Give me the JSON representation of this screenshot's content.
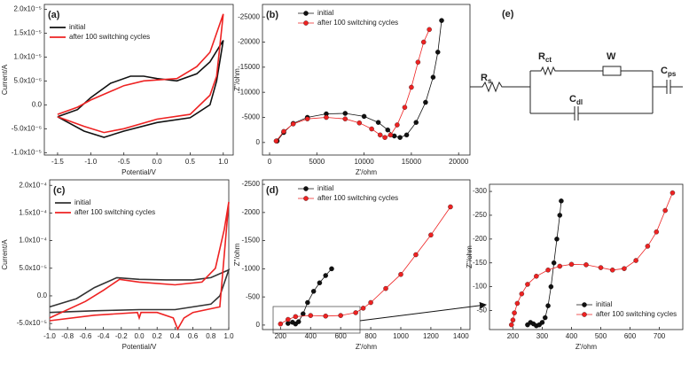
{
  "chart_data": [
    {
      "type": "line",
      "label": "(a)",
      "xlabel": "Potential/V",
      "ylabel": "Current/A",
      "legend": "upper left",
      "markers": false,
      "xlim": [
        -1.7,
        1.15
      ],
      "xticks": [
        {
          "value": -1.5,
          "label": "-1.5"
        },
        {
          "value": -1.0,
          "label": "-1.0"
        },
        {
          "value": -0.5,
          "label": "-0.5"
        },
        {
          "value": 0.0,
          "label": "0.0"
        },
        {
          "value": 0.5,
          "label": "0.5"
        },
        {
          "value": 1.0,
          "label": "1.0"
        }
      ],
      "ylim": [
        -1.05e-05,
        2.1e-05
      ],
      "yticks": [
        {
          "value": -1e-05,
          "label": "-1.0x10⁻⁵"
        },
        {
          "value": -5e-06,
          "label": "-5.0x10⁻⁶"
        },
        {
          "value": 0,
          "label": "0.0"
        },
        {
          "value": 5e-06,
          "label": "5.0x10⁻⁶"
        },
        {
          "value": 1e-05,
          "label": "1.0x10⁻⁵"
        },
        {
          "value": 1.5e-05,
          "label": "1.5x10⁻⁵"
        },
        {
          "value": 2e-05,
          "label": "2.0x10⁻⁵"
        }
      ],
      "series": [
        {
          "name": "initial",
          "color": "#111111",
          "x": [
            -1.5,
            -1.2,
            -1.0,
            -0.7,
            -0.4,
            -0.2,
            0.0,
            0.3,
            0.6,
            0.8,
            1.0,
            0.9,
            0.8,
            0.5,
            0.0,
            -0.5,
            -0.8,
            -1.1,
            -1.5
          ],
          "values": [
            -2.5e-06,
            -1e-06,
            1.5e-06,
            4.5e-06,
            6e-06,
            6e-06,
            5.5e-06,
            5e-06,
            6.5e-06,
            9e-06,
            1.35e-05,
            5e-06,
            0,
            -2.7e-06,
            -3.7e-06,
            -5.5e-06,
            -6.8e-06,
            -5.5e-06,
            -2.5e-06
          ]
        },
        {
          "name": "after 100 switching cycles",
          "color": "#ee2222",
          "x": [
            -1.5,
            -1.2,
            -1.0,
            -0.5,
            -0.2,
            0.3,
            0.6,
            0.8,
            1.0,
            0.9,
            0.8,
            0.5,
            0.0,
            -0.5,
            -0.8,
            -1.1,
            -1.5
          ],
          "values": [
            -2e-06,
            -5e-07,
            1e-06,
            4e-06,
            5e-06,
            5.5e-06,
            8e-06,
            1.1e-05,
            1.9e-05,
            6e-06,
            2e-06,
            -2e-06,
            -3e-06,
            -5e-06,
            -5.8e-06,
            -4.5e-06,
            -2.5e-06
          ]
        }
      ]
    },
    {
      "type": "line",
      "label": "(b)",
      "xlabel": "Z'/ohm",
      "ylabel": "Z''/ohm",
      "legend": "upper center",
      "markers": true,
      "xlim": [
        -750,
        21200
      ],
      "xticks": [
        0,
        5000,
        10000,
        15000,
        20000
      ],
      "ylim": [
        2500,
        -27500
      ],
      "yticks": [
        0,
        -5000,
        -10000,
        -15000,
        -20000,
        -25000
      ],
      "series": [
        {
          "name": "initial",
          "color": "#111111",
          "x": [
            800,
            1500,
            2500,
            4000,
            6000,
            8000,
            10000,
            11500,
            12500,
            13200,
            13800,
            14500,
            15500,
            16500,
            17300,
            17800,
            18200
          ],
          "values": [
            -300,
            -2000,
            -3800,
            -5000,
            -5700,
            -5800,
            -5200,
            -4000,
            -2500,
            -1300,
            -1000,
            -1500,
            -4000,
            -8000,
            -13000,
            -18000,
            -24300
          ]
        },
        {
          "name": "after 100 switching cycles",
          "color": "#ee2222",
          "x": [
            700,
            1500,
            2500,
            4000,
            6000,
            8000,
            9500,
            10800,
            11700,
            12200,
            12800,
            13500,
            14300,
            15000,
            15700,
            16300,
            16900
          ],
          "values": [
            -300,
            -2200,
            -3700,
            -4700,
            -5000,
            -4700,
            -3900,
            -2700,
            -1500,
            -1000,
            -1500,
            -3500,
            -7000,
            -11000,
            -16000,
            -20000,
            -22500
          ]
        }
      ]
    },
    {
      "type": "line",
      "label": "(c)",
      "xlabel": "Potential/V",
      "ylabel": "Current/A",
      "legend": "upper left",
      "markers": false,
      "xlim": [
        -1.0,
        1.0
      ],
      "xticks": [
        {
          "value": -1.0,
          "label": "-1.0"
        },
        {
          "value": -0.8,
          "label": "-0.8"
        },
        {
          "value": -0.6,
          "label": "-0.6"
        },
        {
          "value": -0.4,
          "label": "-0.4"
        },
        {
          "value": -0.2,
          "label": "-0.2"
        },
        {
          "value": 0.0,
          "label": "0.0"
        },
        {
          "value": 0.2,
          "label": "0.2"
        },
        {
          "value": 0.4,
          "label": "0.4"
        },
        {
          "value": 0.6,
          "label": "0.6"
        },
        {
          "value": 0.8,
          "label": "0.8"
        },
        {
          "value": 1.0,
          "label": "1.0"
        }
      ],
      "ylim": [
        -6.1e-05,
        0.00021
      ],
      "yticks": [
        {
          "value": -5e-05,
          "label": "-5.0x10⁻⁵"
        },
        {
          "value": 0,
          "label": "0.0"
        },
        {
          "value": 5e-05,
          "label": "5.0x10⁻⁵"
        },
        {
          "value": 0.0001,
          "label": "1.0x10⁻⁴"
        },
        {
          "value": 0.00015,
          "label": "1.5x10⁻⁴"
        },
        {
          "value": 0.0002,
          "label": "2.0x10⁻⁴"
        }
      ],
      "series": [
        {
          "name": "initial",
          "color": "#333333",
          "x": [
            -1.0,
            -0.7,
            -0.5,
            -0.25,
            0.0,
            0.3,
            0.6,
            0.8,
            1.0,
            0.9,
            0.8,
            0.4,
            0.0,
            -0.5,
            -1.0
          ],
          "values": [
            -2e-05,
            -5e-06,
            1.5e-05,
            3.3e-05,
            3e-05,
            2.9e-05,
            2.9e-05,
            3.3e-05,
            4.7e-05,
            0,
            -1.5e-05,
            -2.5e-05,
            -2.5e-05,
            -2.7e-05,
            -3e-05
          ]
        },
        {
          "name": "after 100 switching cycles",
          "color": "#ee2222",
          "x": [
            -1.0,
            -0.6,
            -0.4,
            -0.22,
            0.0,
            0.4,
            0.7,
            0.85,
            0.95,
            1.0,
            0.9,
            0.6,
            0.5,
            0.43,
            0.38,
            0.2,
            0.02,
            0.0,
            -0.02,
            -0.5,
            -1.0
          ],
          "values": [
            -4e-05,
            -1e-05,
            1e-05,
            3e-05,
            2.5e-05,
            2e-05,
            2.5e-05,
            5e-05,
            0.00012,
            0.00017,
            -2e-05,
            -3e-05,
            -4e-05,
            -6e-05,
            -4e-05,
            -3e-05,
            -3e-05,
            -4e-05,
            -3e-05,
            -3.5e-05,
            -4.5e-05
          ]
        }
      ]
    },
    {
      "type": "line",
      "label": "(d)",
      "xlabel": "Z'/ohm",
      "ylabel": "Z''/ohm",
      "legend": "upper center",
      "markers": true,
      "xlim": [
        80,
        1460
      ],
      "xticks": [
        200,
        400,
        600,
        800,
        1000,
        1200,
        1400
      ],
      "ylim": [
        80,
        -2580
      ],
      "yticks": [
        0,
        -500,
        -1000,
        -1500,
        -2000,
        -2500
      ],
      "series": [
        {
          "name": "initial",
          "color": "#111111",
          "x": [
            250,
            280,
            300,
            320,
            350,
            380,
            420,
            460,
            500,
            540
          ],
          "values": [
            -30,
            -50,
            -20,
            -60,
            -200,
            -400,
            -600,
            -750,
            -880,
            -1000
          ]
        },
        {
          "name": "after 100 switching cycles",
          "color": "#ee2222",
          "x": [
            200,
            250,
            300,
            400,
            500,
            600,
            700,
            750,
            800,
            900,
            1000,
            1100,
            1200,
            1330
          ],
          "values": [
            -20,
            -100,
            -150,
            -170,
            -160,
            -170,
            -220,
            -300,
            -400,
            -650,
            -900,
            -1250,
            -1600,
            -2100
          ]
        }
      ]
    },
    {
      "type": "line",
      "xlabel": "Z'/ohm",
      "ylabel": "Z''/ohm",
      "legend": "lower right",
      "markers": true,
      "xlim": [
        120,
        780
      ],
      "xticks": [
        200,
        300,
        400,
        500,
        600,
        700
      ],
      "ylim": [
        -10,
        -315
      ],
      "yticks": [
        -50,
        -100,
        -150,
        -200,
        -250,
        -300
      ],
      "series": [
        {
          "name": "initial",
          "color": "#111111",
          "x": [
            250,
            260,
            270,
            280,
            290,
            300,
            310,
            320,
            330,
            340,
            350,
            360,
            365
          ],
          "values": [
            -20,
            -25,
            -22,
            -18,
            -20,
            -25,
            -35,
            -60,
            -100,
            -150,
            -200,
            -250,
            -280
          ]
        },
        {
          "name": "after 100 switching cycles",
          "color": "#ee2222",
          "x": [
            195,
            200,
            205,
            215,
            230,
            250,
            280,
            320,
            360,
            400,
            450,
            500,
            540,
            580,
            620,
            660,
            690,
            720,
            745
          ],
          "values": [
            -20,
            -30,
            -45,
            -65,
            -85,
            -105,
            -122,
            -135,
            -143,
            -147,
            -146,
            -140,
            -135,
            -138,
            -155,
            -185,
            -215,
            -260,
            -297
          ]
        }
      ]
    }
  ],
  "circuit": {
    "label": "(e)",
    "components": [
      {
        "symbol": "R",
        "subscript": "s"
      },
      {
        "symbol": "R",
        "subscript": "ct"
      },
      {
        "symbol": "W"
      },
      {
        "symbol": "C",
        "subscript": "dl"
      },
      {
        "symbol": "C",
        "subscript": "ps"
      }
    ]
  }
}
